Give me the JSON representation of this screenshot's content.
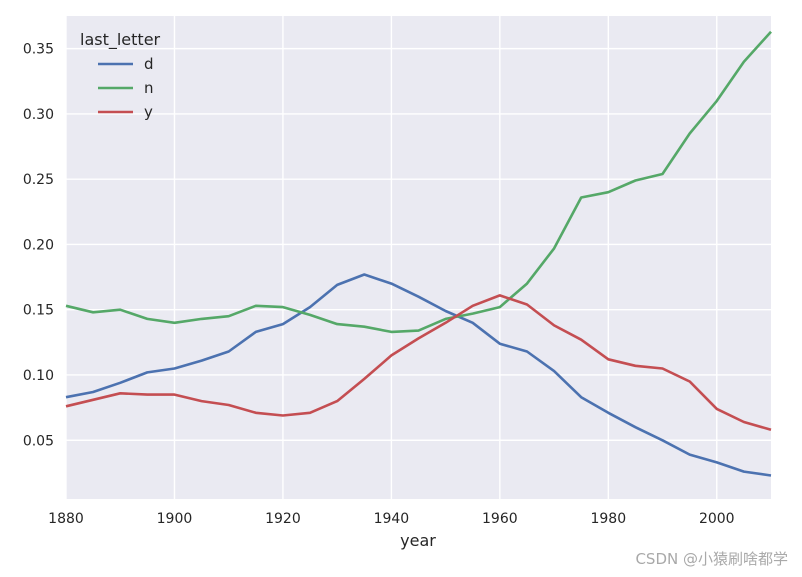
{
  "chart_data": {
    "type": "line",
    "xlabel": "year",
    "ylabel": "",
    "xlim": [
      1880,
      2010
    ],
    "ylim": [
      0.005,
      0.375
    ],
    "xticks": [
      1880,
      1900,
      1920,
      1940,
      1960,
      1980,
      2000
    ],
    "yticks": [
      0.05,
      0.1,
      0.15,
      0.2,
      0.25,
      0.3,
      0.35
    ],
    "ytick_labels": [
      "0.05",
      "0.10",
      "0.15",
      "0.20",
      "0.25",
      "0.30",
      "0.35"
    ],
    "grid": true,
    "legend": {
      "title": "last_letter",
      "placement": "top-left"
    },
    "x": [
      1880,
      1885,
      1890,
      1895,
      1900,
      1905,
      1910,
      1915,
      1920,
      1925,
      1930,
      1935,
      1940,
      1945,
      1950,
      1955,
      1960,
      1965,
      1970,
      1975,
      1980,
      1985,
      1990,
      1995,
      2000,
      2005,
      2010
    ],
    "series": [
      {
        "name": "d",
        "color": "#4c72b0",
        "values": [
          0.083,
          0.087,
          0.094,
          0.102,
          0.105,
          0.111,
          0.118,
          0.133,
          0.139,
          0.152,
          0.169,
          0.177,
          0.17,
          0.16,
          0.149,
          0.14,
          0.124,
          0.118,
          0.103,
          0.083,
          0.071,
          0.06,
          0.05,
          0.039,
          0.033,
          0.026,
          0.023
        ]
      },
      {
        "name": "n",
        "color": "#55a868",
        "values": [
          0.153,
          0.148,
          0.15,
          0.143,
          0.14,
          0.143,
          0.145,
          0.153,
          0.152,
          0.146,
          0.139,
          0.137,
          0.133,
          0.134,
          0.143,
          0.147,
          0.152,
          0.17,
          0.197,
          0.236,
          0.24,
          0.249,
          0.254,
          0.285,
          0.31,
          0.34,
          0.363
        ]
      },
      {
        "name": "y",
        "color": "#c44e52",
        "values": [
          0.076,
          0.081,
          0.086,
          0.085,
          0.085,
          0.08,
          0.077,
          0.071,
          0.069,
          0.071,
          0.08,
          0.097,
          0.115,
          0.128,
          0.14,
          0.153,
          0.161,
          0.154,
          0.138,
          0.127,
          0.112,
          0.107,
          0.105,
          0.095,
          0.074,
          0.064,
          0.058
        ]
      }
    ]
  },
  "watermark": "CSDN @小猿刷啥都学"
}
